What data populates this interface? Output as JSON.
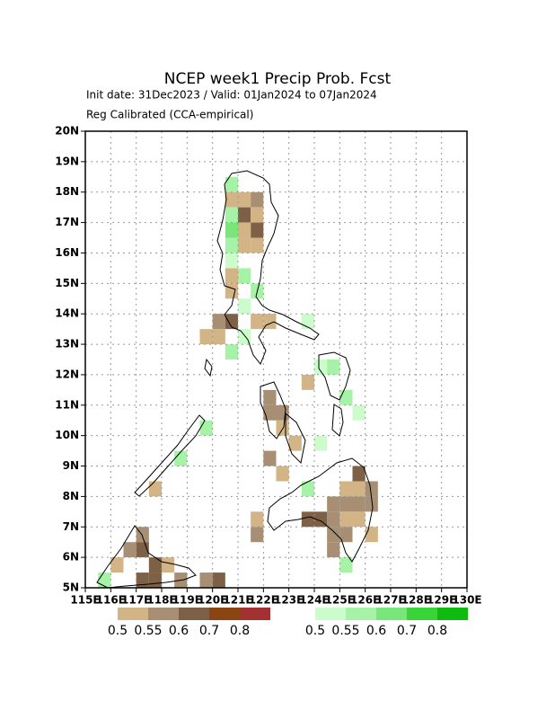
{
  "title": "NCEP week1 Precip Prob. Fcst",
  "subtitle": "Init date: 31Dec2023 / Valid: 01Jan2024 to 07Jan2024",
  "subtitle2": "Reg Calibrated (CCA-empirical)",
  "map": {
    "lonlim": [
      115,
      130
    ],
    "latlim": [
      5,
      20
    ],
    "lon_ticks": [
      {
        "value": 115,
        "label": "115E"
      },
      {
        "value": 116,
        "label": "116E"
      },
      {
        "value": 117,
        "label": "117E"
      },
      {
        "value": 118,
        "label": "118E"
      },
      {
        "value": 119,
        "label": "119E"
      },
      {
        "value": 120,
        "label": "120E"
      },
      {
        "value": 121,
        "label": "121E"
      },
      {
        "value": 122,
        "label": "122E"
      },
      {
        "value": 123,
        "label": "123E"
      },
      {
        "value": 124,
        "label": "124E"
      },
      {
        "value": 125,
        "label": "125E"
      },
      {
        "value": 126,
        "label": "126E"
      },
      {
        "value": 127,
        "label": "127E"
      },
      {
        "value": 128,
        "label": "128E"
      },
      {
        "value": 129,
        "label": "129E"
      },
      {
        "value": 130,
        "label": "130E"
      }
    ],
    "lat_ticks": [
      {
        "value": 5,
        "label": "5N"
      },
      {
        "value": 6,
        "label": "6N"
      },
      {
        "value": 7,
        "label": "7N"
      },
      {
        "value": 8,
        "label": "8N"
      },
      {
        "value": 9,
        "label": "9N"
      },
      {
        "value": 10,
        "label": "10N"
      },
      {
        "value": 11,
        "label": "11N"
      },
      {
        "value": 12,
        "label": "12N"
      },
      {
        "value": 13,
        "label": "13N"
      },
      {
        "value": 14,
        "label": "14N"
      },
      {
        "value": 15,
        "label": "15N"
      },
      {
        "value": 16,
        "label": "16N"
      },
      {
        "value": 17,
        "label": "17N"
      },
      {
        "value": 18,
        "label": "18N"
      },
      {
        "value": 19,
        "label": "19N"
      },
      {
        "value": 20,
        "label": "20N"
      }
    ],
    "grid": true,
    "dry_legend": {
      "values": [
        0.5,
        0.55,
        0.6,
        0.7,
        0.8
      ],
      "colors": [
        "#d2b486",
        "#a88e72",
        "#7e6047",
        "#8a4513",
        "#a33131"
      ]
    },
    "wet_legend": {
      "values": [
        0.5,
        0.55,
        0.6,
        0.7,
        0.8
      ],
      "colors": [
        "#ccfccc",
        "#a6f2a6",
        "#78e678",
        "#38d438",
        "#10bb10"
      ]
    },
    "dry_cells": [
      {
        "lon": 120.5,
        "lat": 17.5,
        "p": 0.5
      },
      {
        "lon": 121.0,
        "lat": 17.5,
        "p": 0.5
      },
      {
        "lon": 121.5,
        "lat": 17.5,
        "p": 0.55
      },
      {
        "lon": 121.0,
        "lat": 17.0,
        "p": 0.6
      },
      {
        "lon": 121.5,
        "lat": 17.0,
        "p": 0.5
      },
      {
        "lon": 121.5,
        "lat": 16.5,
        "p": 0.6
      },
      {
        "lon": 121.0,
        "lat": 16.5,
        "p": 0.5
      },
      {
        "lon": 121.0,
        "lat": 16.0,
        "p": 0.5
      },
      {
        "lon": 121.5,
        "lat": 16.0,
        "p": 0.5
      },
      {
        "lon": 120.5,
        "lat": 15.0,
        "p": 0.5
      },
      {
        "lon": 120.5,
        "lat": 14.5,
        "p": 0.5
      },
      {
        "lon": 120.0,
        "lat": 13.5,
        "p": 0.55
      },
      {
        "lon": 120.5,
        "lat": 13.5,
        "p": 0.6
      },
      {
        "lon": 119.5,
        "lat": 13.0,
        "p": 0.5
      },
      {
        "lon": 120.0,
        "lat": 13.0,
        "p": 0.5
      },
      {
        "lon": 121.5,
        "lat": 13.5,
        "p": 0.5
      },
      {
        "lon": 122.0,
        "lat": 13.5,
        "p": 0.5
      },
      {
        "lon": 122.0,
        "lat": 11.0,
        "p": 0.55
      },
      {
        "lon": 122.0,
        "lat": 10.5,
        "p": 0.55
      },
      {
        "lon": 122.5,
        "lat": 10.5,
        "p": 0.55
      },
      {
        "lon": 122.5,
        "lat": 10.0,
        "p": 0.5
      },
      {
        "lon": 122.0,
        "lat": 9.0,
        "p": 0.55
      },
      {
        "lon": 122.5,
        "lat": 8.5,
        "p": 0.5
      },
      {
        "lon": 123.0,
        "lat": 9.5,
        "p": 0.5
      },
      {
        "lon": 123.5,
        "lat": 11.5,
        "p": 0.5
      },
      {
        "lon": 124.5,
        "lat": 7.5,
        "p": 0.55
      },
      {
        "lon": 125.0,
        "lat": 7.5,
        "p": 0.55
      },
      {
        "lon": 125.5,
        "lat": 7.5,
        "p": 0.55
      },
      {
        "lon": 126.0,
        "lat": 7.5,
        "p": 0.55
      },
      {
        "lon": 125.0,
        "lat": 8.0,
        "p": 0.5
      },
      {
        "lon": 125.5,
        "lat": 8.0,
        "p": 0.5
      },
      {
        "lon": 126.0,
        "lat": 8.0,
        "p": 0.55
      },
      {
        "lon": 124.5,
        "lat": 7.0,
        "p": 0.55
      },
      {
        "lon": 125.0,
        "lat": 7.0,
        "p": 0.5
      },
      {
        "lon": 125.5,
        "lat": 7.0,
        "p": 0.5
      },
      {
        "lon": 124.5,
        "lat": 6.5,
        "p": 0.55
      },
      {
        "lon": 125.0,
        "lat": 6.5,
        "p": 0.55
      },
      {
        "lon": 124.5,
        "lat": 6.0,
        "p": 0.55
      },
      {
        "lon": 124.0,
        "lat": 7.0,
        "p": 0.6
      },
      {
        "lon": 123.5,
        "lat": 7.0,
        "p": 0.6
      },
      {
        "lon": 121.5,
        "lat": 6.5,
        "p": 0.55
      },
      {
        "lon": 121.5,
        "lat": 7.0,
        "p": 0.5
      },
      {
        "lon": 126.0,
        "lat": 6.5,
        "p": 0.5
      },
      {
        "lon": 125.5,
        "lat": 8.5,
        "p": 0.6
      },
      {
        "lon": 117.0,
        "lat": 6.5,
        "p": 0.55
      },
      {
        "lon": 116.5,
        "lat": 6.0,
        "p": 0.55
      },
      {
        "lon": 117.0,
        "lat": 6.0,
        "p": 0.6
      },
      {
        "lon": 117.5,
        "lat": 5.5,
        "p": 0.6
      },
      {
        "lon": 117.0,
        "lat": 5.0,
        "p": 0.6
      },
      {
        "lon": 117.5,
        "lat": 5.0,
        "p": 0.6
      },
      {
        "lon": 116.0,
        "lat": 5.5,
        "p": 0.5
      },
      {
        "lon": 118.0,
        "lat": 5.5,
        "p": 0.5
      },
      {
        "lon": 118.5,
        "lat": 5.0,
        "p": 0.55
      },
      {
        "lon": 117.5,
        "lat": 8.0,
        "p": 0.5
      },
      {
        "lon": 119.5,
        "lat": 5.0,
        "p": 0.55
      },
      {
        "lon": 120.0,
        "lat": 5.0,
        "p": 0.6
      }
    ],
    "wet_cells": [
      {
        "lon": 120.5,
        "lat": 18.0,
        "p": 0.55
      },
      {
        "lon": 120.5,
        "lat": 17.0,
        "p": 0.55
      },
      {
        "lon": 120.5,
        "lat": 16.5,
        "p": 0.6
      },
      {
        "lon": 120.5,
        "lat": 16.0,
        "p": 0.55
      },
      {
        "lon": 120.5,
        "lat": 15.5,
        "p": 0.5
      },
      {
        "lon": 121.5,
        "lat": 14.5,
        "p": 0.55
      },
      {
        "lon": 121.0,
        "lat": 14.0,
        "p": 0.5
      },
      {
        "lon": 121.0,
        "lat": 13.0,
        "p": 0.5
      },
      {
        "lon": 120.5,
        "lat": 12.5,
        "p": 0.55
      },
      {
        "lon": 123.5,
        "lat": 13.5,
        "p": 0.5
      },
      {
        "lon": 124.0,
        "lat": 12.0,
        "p": 0.5
      },
      {
        "lon": 124.5,
        "lat": 12.0,
        "p": 0.55
      },
      {
        "lon": 125.0,
        "lat": 11.0,
        "p": 0.55
      },
      {
        "lon": 125.5,
        "lat": 10.5,
        "p": 0.5
      },
      {
        "lon": 124.0,
        "lat": 9.5,
        "p": 0.5
      },
      {
        "lon": 123.5,
        "lat": 8.0,
        "p": 0.55
      },
      {
        "lon": 118.5,
        "lat": 9.0,
        "p": 0.55
      },
      {
        "lon": 119.5,
        "lat": 10.0,
        "p": 0.55
      },
      {
        "lon": 125.0,
        "lat": 5.5,
        "p": 0.55
      },
      {
        "lon": 115.5,
        "lat": 5.0,
        "p": 0.55
      },
      {
        "lon": 121.0,
        "lat": 15.0,
        "p": 0.55
      }
    ]
  }
}
